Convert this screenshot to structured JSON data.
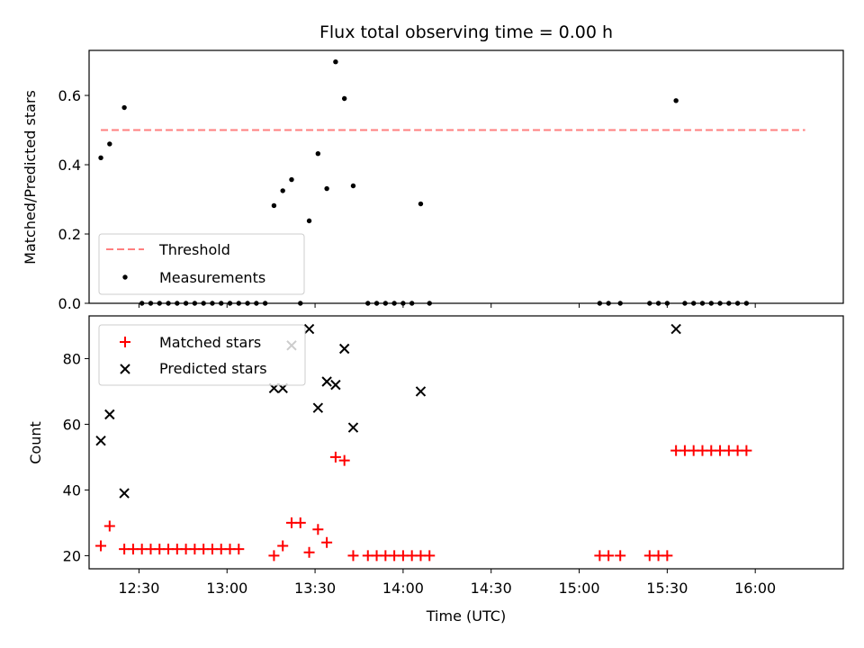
{
  "chart_data": [
    {
      "type": "scatter",
      "title": "Flux total observing time = 0.00 h",
      "xlabel": "",
      "ylabel": "Matched/Predicted stars",
      "xlim": [
        "12:13",
        "16:30"
      ],
      "ylim": [
        0,
        0.73
      ],
      "y_ticks": [
        "0.0",
        "0.2",
        "0.4",
        "0.6"
      ],
      "threshold": 0.5,
      "threshold_range": [
        "12:17",
        "16:17"
      ],
      "legend": {
        "position": "lower-left",
        "entries": [
          "Threshold",
          "Measurements"
        ]
      },
      "series": [
        {
          "name": "Measurements",
          "color": "#000000",
          "points": [
            [
              "12:17",
              0.42
            ],
            [
              "12:20",
              0.46
            ],
            [
              "12:25",
              0.565
            ],
            [
              "12:31",
              0.0
            ],
            [
              "12:34",
              0.0
            ],
            [
              "12:37",
              0.0
            ],
            [
              "12:40",
              0.0
            ],
            [
              "12:43",
              0.0
            ],
            [
              "12:46",
              0.0
            ],
            [
              "12:49",
              0.0
            ],
            [
              "12:52",
              0.0
            ],
            [
              "12:55",
              0.0
            ],
            [
              "12:58",
              0.0
            ],
            [
              "13:01",
              0.0
            ],
            [
              "13:04",
              0.0
            ],
            [
              "13:07",
              0.0
            ],
            [
              "13:10",
              0.0
            ],
            [
              "13:13",
              0.0
            ],
            [
              "13:16",
              0.282
            ],
            [
              "13:19",
              0.325
            ],
            [
              "13:22",
              0.357
            ],
            [
              "13:25",
              0.0
            ],
            [
              "13:28",
              0.238
            ],
            [
              "13:31",
              0.432
            ],
            [
              "13:34",
              0.331
            ],
            [
              "13:37",
              0.697
            ],
            [
              "13:40",
              0.591
            ],
            [
              "13:43",
              0.339
            ],
            [
              "13:48",
              0.0
            ],
            [
              "13:51",
              0.0
            ],
            [
              "13:54",
              0.0
            ],
            [
              "13:57",
              0.0
            ],
            [
              "14:00",
              0.0
            ],
            [
              "14:03",
              0.0
            ],
            [
              "14:06",
              0.287
            ],
            [
              "14:09",
              0.0
            ],
            [
              "15:07",
              0.0
            ],
            [
              "15:10",
              0.0
            ],
            [
              "15:14",
              0.0
            ],
            [
              "15:24",
              0.0
            ],
            [
              "15:27",
              0.0
            ],
            [
              "15:30",
              0.0
            ],
            [
              "15:33",
              0.585
            ],
            [
              "15:36",
              0.0
            ],
            [
              "15:39",
              0.0
            ],
            [
              "15:42",
              0.0
            ],
            [
              "15:45",
              0.0
            ],
            [
              "15:48",
              0.0
            ],
            [
              "15:51",
              0.0
            ],
            [
              "15:54",
              0.0
            ],
            [
              "15:57",
              0.0
            ]
          ]
        }
      ]
    },
    {
      "type": "scatter",
      "title": "",
      "xlabel": "Time (UTC)",
      "ylabel": "Count",
      "xlim": [
        "12:13",
        "16:30"
      ],
      "ylim": [
        16,
        93
      ],
      "y_ticks": [
        "20",
        "40",
        "60",
        "80"
      ],
      "x_ticks": [
        "12:30",
        "13:00",
        "13:30",
        "14:00",
        "14:30",
        "15:00",
        "15:30",
        "16:00"
      ],
      "legend": {
        "position": "upper-left",
        "entries": [
          "Matched stars",
          "Predicted stars"
        ]
      },
      "series": [
        {
          "name": "Matched stars",
          "color": "#ff0000",
          "points": [
            [
              "12:17",
              23
            ],
            [
              "12:20",
              29
            ],
            [
              "12:25",
              22
            ],
            [
              "12:28",
              22
            ],
            [
              "12:31",
              22
            ],
            [
              "12:34",
              22
            ],
            [
              "12:37",
              22
            ],
            [
              "12:40",
              22
            ],
            [
              "12:43",
              22
            ],
            [
              "12:46",
              22
            ],
            [
              "12:49",
              22
            ],
            [
              "12:52",
              22
            ],
            [
              "12:55",
              22
            ],
            [
              "12:58",
              22
            ],
            [
              "13:01",
              22
            ],
            [
              "13:04",
              22
            ],
            [
              "13:16",
              20
            ],
            [
              "13:19",
              23
            ],
            [
              "13:22",
              30
            ],
            [
              "13:25",
              30
            ],
            [
              "13:28",
              21
            ],
            [
              "13:31",
              28
            ],
            [
              "13:34",
              24
            ],
            [
              "13:37",
              50
            ],
            [
              "13:40",
              49
            ],
            [
              "13:43",
              20
            ],
            [
              "13:48",
              20
            ],
            [
              "13:51",
              20
            ],
            [
              "13:54",
              20
            ],
            [
              "13:57",
              20
            ],
            [
              "14:00",
              20
            ],
            [
              "14:03",
              20
            ],
            [
              "14:06",
              20
            ],
            [
              "14:09",
              20
            ],
            [
              "15:07",
              20
            ],
            [
              "15:10",
              20
            ],
            [
              "15:14",
              20
            ],
            [
              "15:24",
              20
            ],
            [
              "15:27",
              20
            ],
            [
              "15:30",
              20
            ],
            [
              "15:33",
              52
            ],
            [
              "15:36",
              52
            ],
            [
              "15:39",
              52
            ],
            [
              "15:42",
              52
            ],
            [
              "15:45",
              52
            ],
            [
              "15:48",
              52
            ],
            [
              "15:51",
              52
            ],
            [
              "15:54",
              52
            ],
            [
              "15:57",
              52
            ]
          ]
        },
        {
          "name": "Predicted stars",
          "color": "#000000",
          "points": [
            [
              "12:17",
              55
            ],
            [
              "12:20",
              63
            ],
            [
              "12:25",
              39
            ],
            [
              "13:16",
              71
            ],
            [
              "13:19",
              71
            ],
            [
              "13:22",
              84
            ],
            [
              "13:28",
              89
            ],
            [
              "13:31",
              65
            ],
            [
              "13:34",
              73
            ],
            [
              "13:37",
              72
            ],
            [
              "13:40",
              83
            ],
            [
              "13:43",
              59
            ],
            [
              "14:06",
              70
            ],
            [
              "15:33",
              89
            ]
          ]
        }
      ]
    }
  ]
}
